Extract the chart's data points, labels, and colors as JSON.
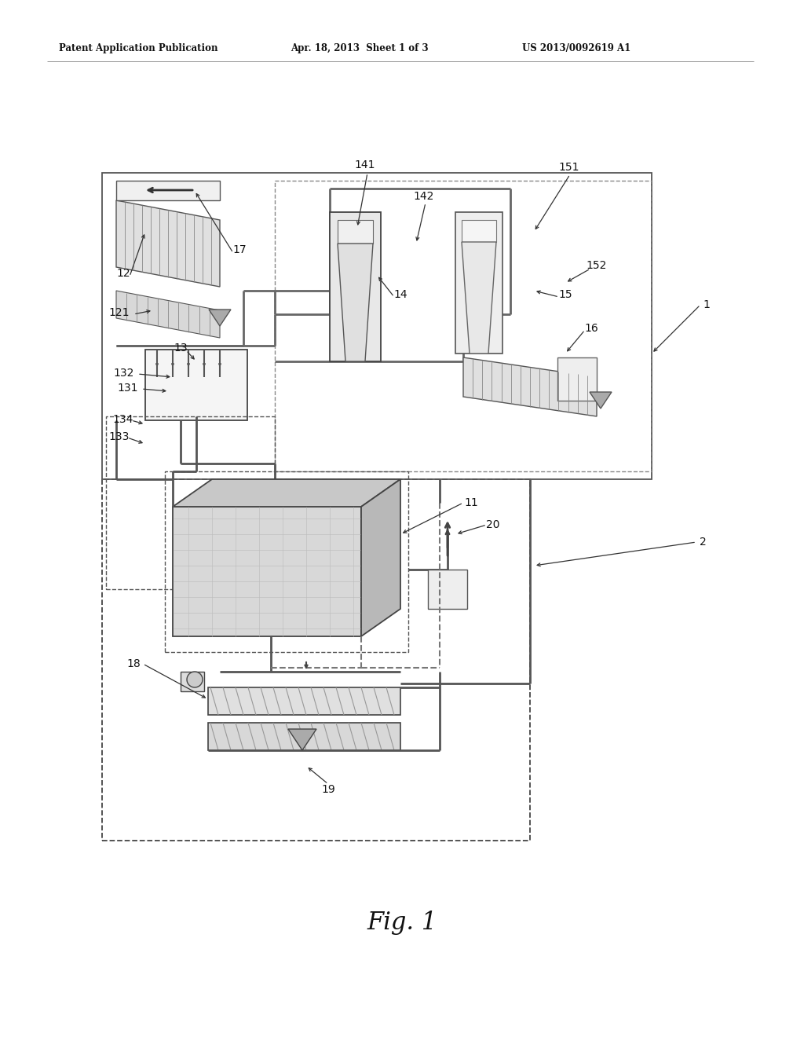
{
  "title": "Fig. 1",
  "header_left": "Patent Application Publication",
  "header_mid": "Apr. 18, 2013  Sheet 1 of 3",
  "header_right": "US 2013/0092619 A1",
  "bg_color": "#ffffff",
  "text_color": "#000000",
  "fig_width": 10.24,
  "fig_height": 13.2,
  "dpi": 100
}
